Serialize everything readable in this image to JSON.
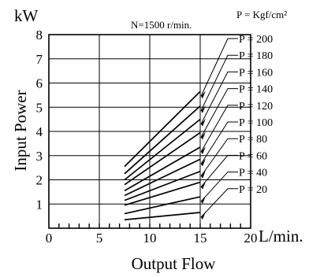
{
  "chart_data": {
    "type": "line",
    "title": "N=1500 r/min.",
    "units_note": "P = Kgf/cm²",
    "xlabel": "Output Flow",
    "x_unit": "L/min.",
    "ylabel": "Input Power",
    "y_unit": "kW",
    "xlim": [
      0,
      20
    ],
    "ylim": [
      0,
      8
    ],
    "x_ticks": [
      "0",
      "5",
      "10",
      "15",
      "20"
    ],
    "y_ticks": [
      "1",
      "2",
      "3",
      "4",
      "5",
      "6",
      "7",
      "8"
    ],
    "grid": true,
    "series": [
      {
        "name": "P = 20",
        "x": [
          7.5,
          15
        ],
        "y": [
          0.35,
          0.65
        ]
      },
      {
        "name": "P = 40",
        "x": [
          7.5,
          15
        ],
        "y": [
          0.6,
          1.3
        ]
      },
      {
        "name": "P = 60",
        "x": [
          7.5,
          15
        ],
        "y": [
          0.95,
          1.9
        ]
      },
      {
        "name": "P = 80",
        "x": [
          7.5,
          15
        ],
        "y": [
          1.15,
          2.35
        ]
      },
      {
        "name": "P = 100",
        "x": [
          7.5,
          15
        ],
        "y": [
          1.35,
          2.85
        ]
      },
      {
        "name": "P = 120",
        "x": [
          7.5,
          15
        ],
        "y": [
          1.55,
          3.35
        ]
      },
      {
        "name": "P = 140",
        "x": [
          7.5,
          15
        ],
        "y": [
          1.8,
          3.95
        ]
      },
      {
        "name": "P = 160",
        "x": [
          7.5,
          15
        ],
        "y": [
          2.0,
          4.5
        ]
      },
      {
        "name": "P = 180",
        "x": [
          7.5,
          15
        ],
        "y": [
          2.25,
          5.05
        ]
      },
      {
        "name": "P = 200",
        "x": [
          7.5,
          15
        ],
        "y": [
          2.55,
          5.65
        ]
      }
    ]
  }
}
